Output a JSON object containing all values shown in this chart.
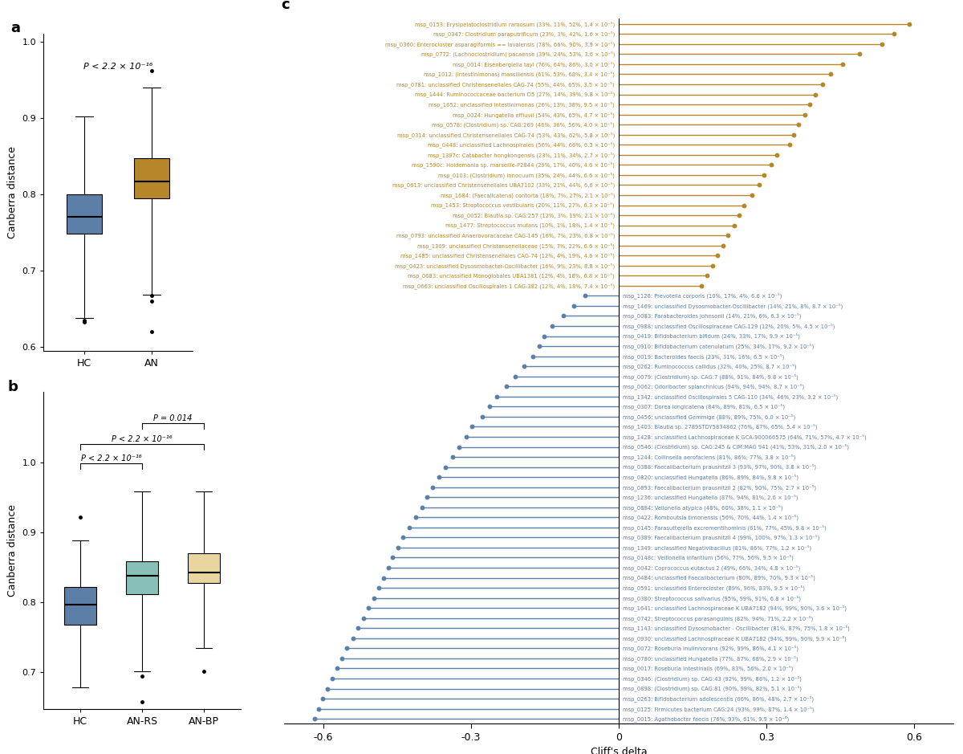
{
  "panel_a": {
    "ylabel": "Canberra distance",
    "groups": [
      "HC",
      "AN"
    ],
    "colors": [
      "#5b7fa6",
      "#b5872a"
    ],
    "medians": [
      0.77,
      0.817
    ],
    "q1": [
      0.748,
      0.795
    ],
    "q3": [
      0.8,
      0.847
    ],
    "whislo": [
      0.638,
      0.668
    ],
    "whishi": [
      0.902,
      0.94
    ],
    "fliers_hc": [
      0.635,
      0.632
    ],
    "fliers_an": [
      0.667,
      0.66,
      0.62
    ],
    "fliers_an_top": [
      0.962
    ],
    "pval_text": "P < 2.2 × 10⁻¹⁶",
    "ylim": [
      0.595,
      1.01
    ],
    "yticks": [
      0.6,
      0.7,
      0.8,
      0.9,
      1.0
    ]
  },
  "panel_b": {
    "ylabel": "Canberra distance",
    "groups": [
      "HC",
      "AN-RS",
      "AN-BP"
    ],
    "colors": [
      "#5b7fa6",
      "#88c0b8",
      "#e8d5a0"
    ],
    "medians": [
      0.797,
      0.838,
      0.843
    ],
    "q1": [
      0.768,
      0.812,
      0.828
    ],
    "q3": [
      0.822,
      0.858,
      0.87
    ],
    "whislo": [
      0.678,
      0.702,
      0.735
    ],
    "whishi": [
      0.888,
      0.958,
      0.958
    ],
    "fliers_hc": [
      0.921
    ],
    "fliers_anrs": [
      0.695,
      0.658
    ],
    "fliers_anbp": [
      0.702
    ],
    "pval1": "P < 2.2 × 10⁻¹⁶",
    "pval2": "P < 2.2 × 10⁻¹⁶",
    "pval3": "P = 0.014",
    "ylim": [
      0.648,
      1.1
    ],
    "yticks": [
      0.7,
      0.8,
      0.9,
      1.0
    ]
  },
  "panel_c": {
    "xlabel": "Cliff's delta",
    "xlim": [
      -0.68,
      0.68
    ],
    "xticks": [
      -0.6,
      -0.3,
      0.0,
      0.3,
      0.6
    ],
    "xticklabels": [
      "-0.6",
      "-0.3",
      "0",
      "0.3",
      "0.6"
    ],
    "color_positive": "#b5872a",
    "color_negative": "#5b7fa6",
    "items_positive": [
      {
        "label": "msp_0153: Erysipelatoclostridium ramosum (33%, 11%, 52%, 1.4 × 10⁻⁵)",
        "value": 0.59
      },
      {
        "label": "msp_0347: Clostridium paraputrificum (23%, 3%, 42%, 1.6 × 10⁻⁵)",
        "value": 0.56
      },
      {
        "label": "msp_0360: Enterocloster asparagiformis == lavalensis (78%, 66%, 90%, 3.9 × 10⁻⁵)",
        "value": 0.535
      },
      {
        "label": "msp_0772: (Lachnoclostridium) pacaense (39%, 24%, 53%, 3.6 × 10⁻⁵)",
        "value": 0.49
      },
      {
        "label": "msp_0014: Eisenbergiella tayi (76%, 64%, 86%, 3.0 × 10⁻⁵)",
        "value": 0.455
      },
      {
        "label": "msp_1012: (Intestinimonas) massiliensis (61%, 53%, 68%, 3.4 × 10⁻⁵)",
        "value": 0.43
      },
      {
        "label": "msp_0781: unclassified Christensenellales CAG-74 (55%, 44%, 65%, 3.5 × 10⁻⁵)",
        "value": 0.415
      },
      {
        "label": "msp_1444: Ruminococcaceae bacterium D5 (27%, 14%, 39%, 9.8 × 10⁻⁵)",
        "value": 0.4
      },
      {
        "label": "msp_1652: unclassified Intestinimonas (26%, 13%, 38%, 9.5 × 10⁻⁵)",
        "value": 0.388
      },
      {
        "label": "msp_0024: Hungatella effluvii (54%, 43%, 65%, 4.7 × 10⁻⁵)",
        "value": 0.378
      },
      {
        "label": "msp_0578: (Clostridium) sp. CAG:269 (46%, 36%, 56%, 4.0 × 10⁻⁵)",
        "value": 0.365
      },
      {
        "label": "msp_0314: unclassified Christensenellales CAG-74 (53%, 43%, 62%, 5.8 × 10⁻⁵)",
        "value": 0.355
      },
      {
        "label": "msp_0448: unclassified Lachnospirales (56%, 44%, 66%, 6.3 × 10⁻⁵)",
        "value": 0.348
      },
      {
        "label": "msp_1397c: Catabacter hongkongensis (23%, 11%, 34%, 2.7 × 10⁻⁵)",
        "value": 0.322
      },
      {
        "label": "msp_1590c: Holdemania sp. marseille-P2844 (29%, 17%, 40%, 4.6 × 10⁻⁵)",
        "value": 0.31
      },
      {
        "label": "msp_0103: (Clostridium) innocuum (35%, 24%, 44%, 6.6 × 10⁻⁵)",
        "value": 0.295
      },
      {
        "label": "msp_0613: unclassified Christensenellales UBA7102 (33%, 21%, 44%, 6.6 × 10⁻⁵)",
        "value": 0.285
      },
      {
        "label": "msp_1684: (Faecalicatena) contorta (18%, 7%, 27%, 2.1 × 10⁻⁵)",
        "value": 0.27
      },
      {
        "label": "msp_1453: Streptococcus vestibularis (20%, 11%, 27%, 6.3 × 10⁻⁵)",
        "value": 0.255
      },
      {
        "label": "msp_0052: Blautia sp. CAG:257 (12%, 3%, 19%, 2.1 × 10⁻⁵)",
        "value": 0.245
      },
      {
        "label": "msp_1477: Streptococcus mutans (10%, 1%, 18%, 1.4 × 10⁻⁵)",
        "value": 0.235
      },
      {
        "label": "msp_0793: unclassified Anaerovoracaceae CAG-145 (16%, 7%, 23%, 6.8 × 10⁻⁵)",
        "value": 0.222
      },
      {
        "label": "msp_1309: unclassified Christensenellaceae (15%, 7%, 22%, 6.6 × 10⁻⁵)",
        "value": 0.212
      },
      {
        "label": "msp_1485: unclassified Christensenellales CAG-74 (12%, 4%, 19%, 4.6 × 10⁻⁵)",
        "value": 0.2
      },
      {
        "label": "msp_0423: unclassified Dysosmobacter-Oscillibacter (16%, 9%, 23%, 8.8 × 10⁻⁵)",
        "value": 0.19
      },
      {
        "label": "msp_0683: unclassified Monoglobales UBA1381 (12%, 4%, 18%, 6.8 × 10⁻⁵)",
        "value": 0.18
      },
      {
        "label": "msp_0663: unclassified Oscillospirales 1 CAG-382 (12%, 4%, 18%, 7.4 × 10⁻⁵)",
        "value": 0.168
      }
    ],
    "items_negative": [
      {
        "label": "msp_1126: Prevotella corporis (10%, 17%, 4%, 6.6 × 10⁻⁵)",
        "value": -0.068
      },
      {
        "label": "msp_1469: unclassified Dysosmobacter-Oscillibacter (14%, 21%, 8%, 8.7 × 10⁻⁵)",
        "value": -0.092
      },
      {
        "label": "msp_0083: Parabacteroides johnsonii (14%, 21%, 6%, 6.3 × 10⁻⁵)",
        "value": -0.112
      },
      {
        "label": "msp_0988: unclassified Oscillospiraceae CAG-129 (12%, 20%, 5%, 4.5 × 10⁻⁵)",
        "value": -0.135
      },
      {
        "label": "msp_0419: Bifidobacterium bifidum (24%, 33%, 17%, 9.9 × 10⁻⁵)",
        "value": -0.152
      },
      {
        "label": "msp_0910: Bifidobacterium catenulatum (25%, 34%, 17%, 9.2 × 10⁻⁵)",
        "value": -0.162
      },
      {
        "label": "msp_0019: Bacteroides faecis (23%, 31%, 16%, 6.5 × 10⁻⁵)",
        "value": -0.175
      },
      {
        "label": "msp_0262: Ruminococcus callidus (32%, 40%, 25%, 8.7 × 10⁻⁵)",
        "value": -0.192
      },
      {
        "label": "msp_0079: (Clostridium) sp. CAG:7 (88%, 91%, 84%, 9.8 × 10⁻⁵)",
        "value": -0.21
      },
      {
        "label": "msp_0062: Odoribacter splanchnicus (94%, 94%, 94%, 8.7 × 10⁻⁵)",
        "value": -0.228
      },
      {
        "label": "msp_1342: unclassified Oscillospirales 5 CAG-110 (34%, 46%, 23%, 3.2 × 10⁻⁵)",
        "value": -0.248
      },
      {
        "label": "msp_0307: Dorea longicatena (84%, 89%, 81%, 6.5 × 10⁻⁵)",
        "value": -0.262
      },
      {
        "label": "msp_0456: unclassified Gemmige (88%, 89%, 75%, 6.0 × 10⁻⁵)",
        "value": -0.278
      },
      {
        "label": "msp_1403: Blautia sp. 2789STDY5834862 (76%, 87%, 65%, 5.4 × 10⁻⁵)",
        "value": -0.298
      },
      {
        "label": "msp_1428: unclassified Lachnospiraceae K GCA-900066575 (64%, 71%, 57%, 4.7 × 10⁻⁵)",
        "value": -0.31
      },
      {
        "label": "msp_0546: (Clostridium) sp. CAG:245 & CIM:MAG 941 (41%, 53%, 31%, 2.0 × 10⁻⁵)",
        "value": -0.325
      },
      {
        "label": "msp_1244: Collinsella aerofaciens (81%, 86%, 77%, 3.8 × 10⁻⁵)",
        "value": -0.338
      },
      {
        "label": "msp_0388: Faecalibacterium prausnitzii 3 (93%, 97%, 90%, 3.8 × 10⁻⁵)",
        "value": -0.352
      },
      {
        "label": "msp_0820: unclassified Hungatella (86%, 89%, 84%, 9.8 × 10⁻⁵)",
        "value": -0.365
      },
      {
        "label": "msp_0893: Faecalibacterium prausnitzii 2 (82%, 90%, 75%, 2.7 × 10⁻⁵)",
        "value": -0.378
      },
      {
        "label": "msp_1236: unclassified Hungatella (87%, 94%, 81%, 2.6 × 10⁻⁵)",
        "value": -0.39
      },
      {
        "label": "msp_0884: Vellonella atypica (48%, 60%, 38%, 1.1 × 10⁻⁵)",
        "value": -0.4
      },
      {
        "label": "msp_0422: Romboutsia timonensis (56%, 70%, 44%, 1.4 × 10⁻⁵)",
        "value": -0.412
      },
      {
        "label": "msp_0145: Parasutterella excrementihominis (61%, 77%, 45%, 9.8 × 10⁻⁵)",
        "value": -0.425
      },
      {
        "label": "msp_0389: Faecalibacterium prausnitzii 4 (99%, 100%, 97%, 1.3 × 10⁻⁵)",
        "value": -0.438
      },
      {
        "label": "msp_1349: unclassified Negativibacillus (81%, 86%, 77%, 1.2 × 10⁻⁵)",
        "value": -0.448
      },
      {
        "label": "msp_0148c: Veillonella infantium (56%, 77%, 56%, 9.5 × 10⁻⁵)",
        "value": -0.46
      },
      {
        "label": "msp_0042: Coprococcus eutactus 2 (49%, 66%, 34%, 4.8 × 10⁻⁵)",
        "value": -0.468
      },
      {
        "label": "msp_0484: unclassified Faecalibacterium (80%, 89%, 70%, 9.3 × 10⁻⁵)",
        "value": -0.478
      },
      {
        "label": "msp_0591: unclassified Enterocloster (89%, 96%, 83%, 9.5 × 10⁻⁵)",
        "value": -0.488
      },
      {
        "label": "msp_0380: Streptococcus salivarius (95%, 99%, 91%, 6.8 × 10⁻⁵)",
        "value": -0.498
      },
      {
        "label": "msp_1641: unclassified Lachnospiraceae K UBA7182 (94%, 99%, 90%, 3.6 × 10⁻⁵)",
        "value": -0.508
      },
      {
        "label": "msp_0742: Streptococcus parasanguinis (82%, 94%, 71%, 2.2 × 10⁻⁵)",
        "value": -0.518
      },
      {
        "label": "msp_1143: unclassified Dysosmobacter - Oscillibacter (81%, 87%, 75%, 1.8 × 10⁻⁵)",
        "value": -0.53
      },
      {
        "label": "msp_0930: unclassified Lachnospiraceae K UBA7182 (94%, 99%, 90%, 9.9 × 10⁻⁶)",
        "value": -0.54
      },
      {
        "label": "msp_0072: Roseburia inulinivorans (92%, 99%, 86%, 4.1 × 10⁻⁵)",
        "value": -0.552
      },
      {
        "label": "msp_0780: unclassified Hungatella (77%, 87%, 68%, 2.9 × 10⁻⁵)",
        "value": -0.562
      },
      {
        "label": "msp_0017: Roseburia intestinalis (69%, 83%, 56%, 2.0 × 10⁻⁵)",
        "value": -0.572
      },
      {
        "label": "msp_0346: (Clostridium) sp. CAG:43 (92%, 99%, 86%, 1.2 × 10⁻⁵)",
        "value": -0.582
      },
      {
        "label": "msp_0898: (Clostridium) sp. CAG:81 (90%, 99%, 82%, 5.1 × 10⁻⁵)",
        "value": -0.592
      },
      {
        "label": "msp_0263: Bifidobacterium adolescentis (66%, 86%, 48%, 2.7 × 10⁻⁵)",
        "value": -0.602
      },
      {
        "label": "msp_0125: Firmicutes bacterium CAG:24 (93%, 99%, 87%, 1.4 × 10⁻⁵)",
        "value": -0.61
      },
      {
        "label": "msp_0015: Agathobacter faecis (76%, 93%, 61%, 9.9 × 10⁻⁶)",
        "value": -0.618
      }
    ]
  }
}
